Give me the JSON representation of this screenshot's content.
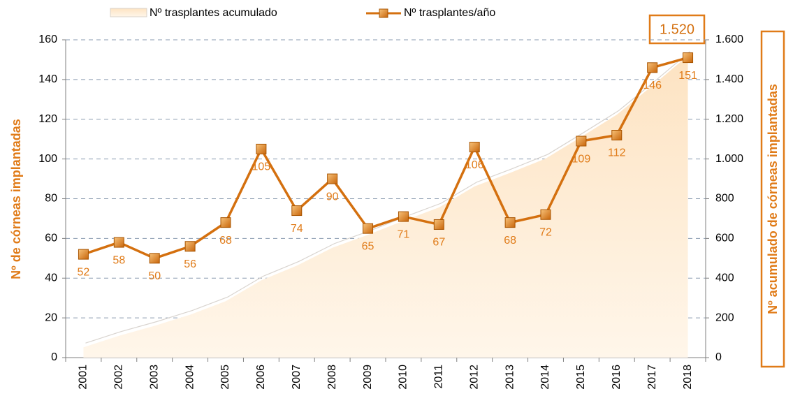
{
  "chart_data": {
    "type": "line",
    "categories": [
      "2001",
      "2002",
      "2003",
      "2004",
      "2005",
      "2006",
      "2007",
      "2008",
      "2009",
      "2010",
      "2011",
      "2012",
      "2013",
      "2014",
      "2015",
      "2016",
      "2017",
      "2018"
    ],
    "series": [
      {
        "name": "Nº trasplantes acumulado",
        "type": "area",
        "axis": "y2",
        "color": "#fdebd3",
        "values": [
          52,
          110,
          160,
          216,
          284,
          389,
          463,
          553,
          618,
          689,
          756,
          862,
          930,
          1002,
          1111,
          1223,
          1369,
          1520
        ]
      },
      {
        "name": "Nº trasplantes/año",
        "type": "line",
        "axis": "y",
        "color": "#d4700f",
        "values": [
          52,
          58,
          50,
          56,
          68,
          105,
          74,
          90,
          65,
          71,
          67,
          106,
          68,
          72,
          109,
          112,
          146,
          151
        ]
      }
    ],
    "ylabel": "Nº de córneas implantadas",
    "y2label": "Nº acumulado de córneas implantadas",
    "annotation": "1.520",
    "ylim": [
      0,
      160
    ],
    "yticks": [
      0,
      20,
      40,
      60,
      80,
      100,
      120,
      140,
      160
    ],
    "y2lim": [
      0,
      1600
    ],
    "y2ticks": [
      0,
      200,
      400,
      600,
      800,
      {
        "value": 1000,
        "label": "1.000"
      },
      {
        "value": 1200,
        "label": "1.200"
      },
      {
        "value": 1400,
        "label": "1.400"
      },
      {
        "value": 1600,
        "label": "1.600"
      }
    ],
    "grid": true,
    "legend": "top"
  }
}
